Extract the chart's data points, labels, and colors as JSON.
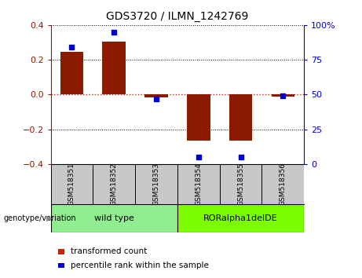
{
  "title": "GDS3720 / ILMN_1242769",
  "samples": [
    "GSM518351",
    "GSM518352",
    "GSM518353",
    "GSM518354",
    "GSM518355",
    "GSM518356"
  ],
  "bar_values": [
    0.245,
    0.305,
    -0.015,
    -0.265,
    -0.265,
    -0.01
  ],
  "percentile_values": [
    84,
    95,
    47,
    5,
    5,
    49
  ],
  "ylim": [
    -0.4,
    0.4
  ],
  "y2lim": [
    0,
    100
  ],
  "yticks": [
    -0.4,
    -0.2,
    0.0,
    0.2,
    0.4
  ],
  "y2ticks": [
    0,
    25,
    50,
    75,
    100
  ],
  "y2ticklabels": [
    "0",
    "25",
    "50",
    "75",
    "100%"
  ],
  "groups": [
    {
      "label": "wild type",
      "start": 0,
      "end": 3,
      "color": "#90EE90"
    },
    {
      "label": "RORalpha1delDE",
      "start": 3,
      "end": 6,
      "color": "#7CFC00"
    }
  ],
  "bar_color": "#8B1A00",
  "percentile_color": "#0000CC",
  "bar_width": 0.55,
  "zero_line_color": "#CC2200",
  "sample_box_color": "#C8C8C8",
  "legend_items": [
    {
      "label": "transformed count",
      "color": "#CC2200"
    },
    {
      "label": "percentile rank within the sample",
      "color": "#0000CC"
    }
  ],
  "genotype_label": "genotype/variation"
}
